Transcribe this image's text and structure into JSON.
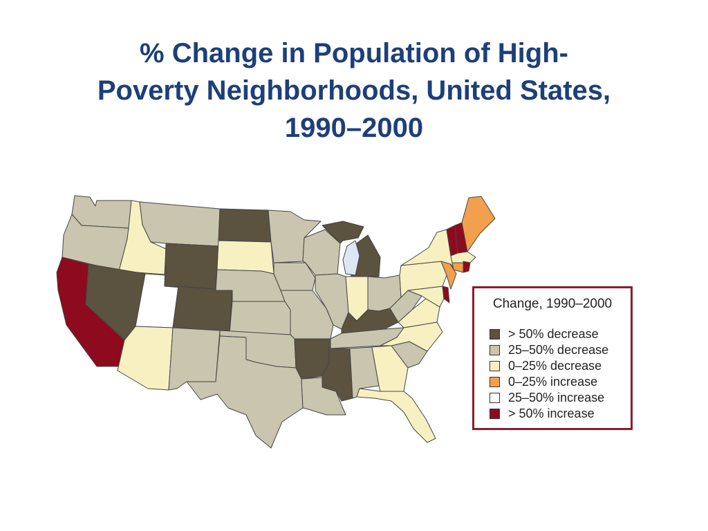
{
  "title": {
    "lines": [
      "% Change in Population of High-",
      "Poverty Neighborhoods, United States,",
      "1990–2000"
    ]
  },
  "colors": {
    "dec_gt50": "#5b5240",
    "dec_25_50": "#c9c5ae",
    "dec_0_25": "#f7f1c2",
    "inc_0_25": "#f2a04d",
    "inc_25_50": "#ffffff",
    "inc_gt50": "#8e0a1e",
    "water": "#dde7f3",
    "border": "#444444",
    "title": "#1d3f7a",
    "legend_border": "#8b1d2c"
  },
  "legend": {
    "title": "Change, 1990–2000",
    "items": [
      {
        "label": "> 50% decrease",
        "color": "#5b5240"
      },
      {
        "label": "25–50% decrease",
        "color": "#c9c5ae"
      },
      {
        "label": "0–25% decrease",
        "color": "#f7f1c2"
      },
      {
        "label": "0–25% increase",
        "color": "#f2a04d"
      },
      {
        "label": "25–50% increase",
        "color": "#ffffff"
      },
      {
        "label": "> 50% increase",
        "color": "#8e0a1e"
      }
    ]
  },
  "states": {
    "WA": "dec_25_50",
    "OR": "dec_25_50",
    "CA": "inc_gt50",
    "ID": "dec_0_25",
    "NV": "dec_gt50",
    "UT": "inc_25_50",
    "AZ": "dec_0_25",
    "MT": "dec_25_50",
    "WY": "dec_gt50",
    "CO": "dec_gt50",
    "NM": "dec_25_50",
    "ND": "dec_gt50",
    "SD": "dec_0_25",
    "NE": "dec_25_50",
    "KS": "dec_25_50",
    "OK": "dec_25_50",
    "TX": "dec_25_50",
    "MN": "dec_25_50",
    "IA": "dec_25_50",
    "MO": "dec_25_50",
    "AR": "dec_gt50",
    "LA": "dec_25_50",
    "WI": "dec_25_50",
    "IL": "dec_25_50",
    "MI": "dec_gt50",
    "IN": "dec_0_25",
    "OH": "dec_25_50",
    "KY": "dec_gt50",
    "TN": "dec_25_50",
    "MS": "dec_gt50",
    "AL": "dec_25_50",
    "GA": "dec_0_25",
    "FL": "dec_0_25",
    "SC": "dec_25_50",
    "NC": "dec_0_25",
    "VA": "dec_0_25",
    "WV": "dec_25_50",
    "PA": "dec_0_25",
    "NY": "dec_0_25",
    "VT": "inc_gt50",
    "NH": "inc_gt50",
    "ME": "inc_0_25",
    "MA": "dec_0_25",
    "CT": "inc_0_25",
    "RI": "inc_gt50",
    "NJ": "inc_0_25",
    "DE": "inc_gt50",
    "MD": "dec_0_25"
  }
}
